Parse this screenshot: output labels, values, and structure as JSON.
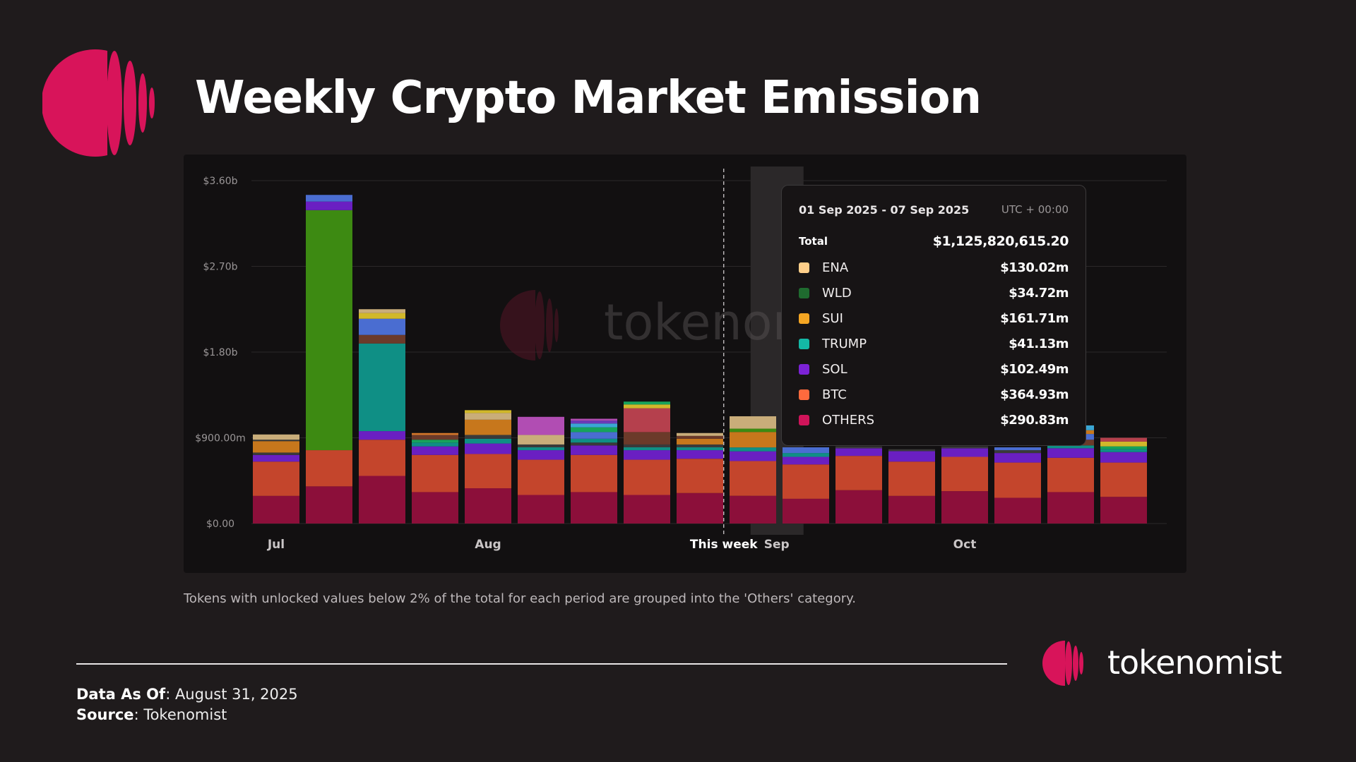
{
  "title": "Weekly Crypto Market Emission",
  "watermark_text": "tokenomist",
  "footnote": "Tokens with unlocked values below 2% of the total for each period are grouped into the 'Others' category.",
  "brand": {
    "name": "tokenomist"
  },
  "meta": {
    "data_as_of_label": "Data As Of",
    "data_as_of_value": ": August 31, 2025",
    "source_label": "Source",
    "source_value": ": Tokenomist"
  },
  "colors": {
    "brand": "#d8145a",
    "background": "#1f1b1c",
    "panel": "#121011"
  },
  "tooltip": {
    "range": "01 Sep 2025 - 07 Sep 2025",
    "timezone": "UTC + 00:00",
    "total_label": "Total",
    "total_value": "$1,125,820,615.20",
    "rows": [
      {
        "name": "ENA",
        "value": "$130.02m",
        "color": "#ffcf8a"
      },
      {
        "name": "WLD",
        "value": "$34.72m",
        "color": "#1f6b2f"
      },
      {
        "name": "SUI",
        "value": "$161.71m",
        "color": "#f5a623"
      },
      {
        "name": "TRUMP",
        "value": "$41.13m",
        "color": "#14b8a6"
      },
      {
        "name": "SOL",
        "value": "$102.49m",
        "color": "#7c22d6"
      },
      {
        "name": "BTC",
        "value": "$364.93m",
        "color": "#ff6a3d"
      },
      {
        "name": "OTHERS",
        "value": "$290.83m",
        "color": "#d0145a"
      }
    ]
  },
  "chart_data": {
    "type": "bar",
    "stacked": true,
    "title": "Weekly Crypto Market Emission",
    "unit": "USD (millions)",
    "ylim": [
      0,
      3600
    ],
    "y_ticks": [
      {
        "value": 0,
        "label": "$0.00"
      },
      {
        "value": 900,
        "label": "$900.00m"
      },
      {
        "value": 1800,
        "label": "$1.80b"
      },
      {
        "value": 2700,
        "label": "$2.70b"
      },
      {
        "value": 3600,
        "label": "$3.60b"
      }
    ],
    "x_labels": [
      {
        "index": 0,
        "label": "Jul"
      },
      {
        "index": 4,
        "label": "Aug"
      },
      {
        "index": 8.45,
        "label": "This week",
        "bold": true
      },
      {
        "index": 9.45,
        "label": "Sep"
      },
      {
        "index": 13,
        "label": "Oct"
      }
    ],
    "this_week_index": 8.45,
    "highlight_index": 9.45,
    "legend": "tooltip",
    "weeks": [
      {
        "index": 0,
        "segments": [
          [
            "OTHERS",
            290
          ],
          [
            "BTC",
            360
          ],
          [
            "SOL",
            70
          ],
          [
            "dark",
            25
          ],
          [
            "SUI",
            120
          ],
          [
            "dark",
            15
          ],
          [
            "ENA",
            55
          ]
        ]
      },
      {
        "index": 1,
        "segments": [
          [
            "OTHERS",
            390
          ],
          [
            "BTC",
            380
          ],
          [
            "WLD",
            2520
          ],
          [
            "SOL",
            90
          ],
          [
            "blue",
            70
          ]
        ]
      },
      {
        "index": 2,
        "segments": [
          [
            "OTHERS",
            500
          ],
          [
            "BTC",
            380
          ],
          [
            "SOL",
            90
          ],
          [
            "TRUMP",
            920
          ],
          [
            "brown",
            90
          ],
          [
            "blue",
            170
          ],
          [
            "yellow",
            60
          ],
          [
            "ENA",
            40
          ]
        ]
      },
      {
        "index": 3,
        "segments": [
          [
            "OTHERS",
            330
          ],
          [
            "BTC",
            390
          ],
          [
            "SOL",
            90
          ],
          [
            "TRUMP",
            40
          ],
          [
            "green",
            30
          ],
          [
            "brown",
            50
          ],
          [
            "orange",
            20
          ]
        ]
      },
      {
        "index": 4,
        "segments": [
          [
            "OTHERS",
            370
          ],
          [
            "BTC",
            360
          ],
          [
            "SOL",
            110
          ],
          [
            "TRUMP",
            50
          ],
          [
            "dark",
            40
          ],
          [
            "SUI",
            160
          ],
          [
            "ENA",
            70
          ],
          [
            "yellow",
            30
          ]
        ]
      },
      {
        "index": 5,
        "segments": [
          [
            "OTHERS",
            300
          ],
          [
            "BTC",
            370
          ],
          [
            "SOL",
            100
          ],
          [
            "TRUMP",
            30
          ],
          [
            "dark",
            30
          ],
          [
            "ENA",
            100
          ],
          [
            "pink",
            190
          ]
        ]
      },
      {
        "index": 6,
        "segments": [
          [
            "OTHERS",
            330
          ],
          [
            "BTC",
            390
          ],
          [
            "SOL",
            100
          ],
          [
            "dark",
            30
          ],
          [
            "TRUMP",
            40
          ],
          [
            "blue",
            70
          ],
          [
            "green",
            50
          ],
          [
            "cyan",
            40
          ],
          [
            "purple",
            30
          ],
          [
            "pink",
            20
          ]
        ]
      },
      {
        "index": 7,
        "segments": [
          [
            "OTHERS",
            300
          ],
          [
            "BTC",
            370
          ],
          [
            "SOL",
            100
          ],
          [
            "TRUMP",
            30
          ],
          [
            "dark",
            30
          ],
          [
            "brown",
            130
          ],
          [
            "red",
            250
          ],
          [
            "yellow",
            40
          ],
          [
            "green",
            30
          ]
        ]
      },
      {
        "index": 8,
        "segments": [
          [
            "OTHERS",
            320
          ],
          [
            "BTC",
            360
          ],
          [
            "SOL",
            90
          ],
          [
            "TRUMP",
            30
          ],
          [
            "dark",
            30
          ],
          [
            "SUI",
            60
          ],
          [
            "brown",
            30
          ],
          [
            "ENA",
            30
          ]
        ]
      },
      {
        "index": 9,
        "segments": [
          [
            "OTHERS",
            291
          ],
          [
            "BTC",
            365
          ],
          [
            "SOL",
            102
          ],
          [
            "TRUMP",
            41
          ],
          [
            "SUI",
            162
          ],
          [
            "WLD",
            35
          ],
          [
            "ENA",
            130
          ]
        ]
      },
      {
        "index": 10,
        "segments": [
          [
            "OTHERS",
            260
          ],
          [
            "BTC",
            360
          ],
          [
            "SOL",
            80
          ],
          [
            "TRUMP",
            40
          ],
          [
            "blue",
            60
          ]
        ]
      },
      {
        "index": 11,
        "segments": [
          [
            "OTHERS",
            350
          ],
          [
            "BTC",
            360
          ],
          [
            "SOL",
            80
          ],
          [
            "dark",
            20
          ]
        ]
      },
      {
        "index": 12,
        "segments": [
          [
            "OTHERS",
            290
          ],
          [
            "BTC",
            360
          ],
          [
            "SOL",
            110
          ],
          [
            "dark",
            20
          ]
        ]
      },
      {
        "index": 13,
        "segments": [
          [
            "OTHERS",
            340
          ],
          [
            "BTC",
            360
          ],
          [
            "SOL",
            90
          ],
          [
            "dark",
            20
          ]
        ]
      },
      {
        "index": 14,
        "segments": [
          [
            "OTHERS",
            270
          ],
          [
            "BTC",
            370
          ],
          [
            "SOL",
            100
          ],
          [
            "dark",
            30
          ],
          [
            "blue",
            30
          ]
        ]
      },
      {
        "index": 15,
        "segments": [
          [
            "OTHERS",
            330
          ],
          [
            "BTC",
            360
          ],
          [
            "SOL",
            100
          ],
          [
            "TRUMP",
            30
          ],
          [
            "brown",
            60
          ],
          [
            "blue",
            60
          ],
          [
            "SUI",
            40
          ],
          [
            "cyan",
            50
          ]
        ]
      },
      {
        "index": 16,
        "segments": [
          [
            "OTHERS",
            280
          ],
          [
            "BTC",
            360
          ],
          [
            "SOL",
            110
          ],
          [
            "TRUMP",
            30
          ],
          [
            "green",
            30
          ],
          [
            "yellow",
            50
          ],
          [
            "red",
            40
          ]
        ]
      }
    ]
  }
}
